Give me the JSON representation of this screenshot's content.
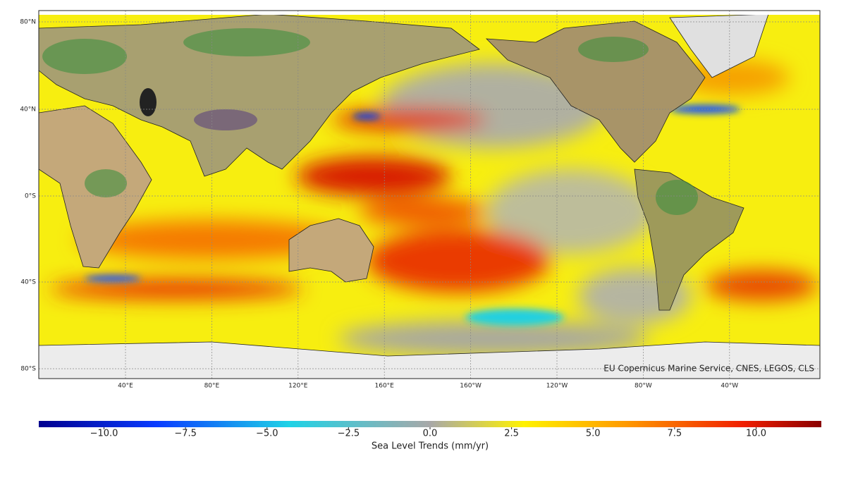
{
  "map": {
    "lat_labels": [
      "80°N",
      "40°N",
      "0°S",
      "40°S",
      "80°S"
    ],
    "lon_labels": [
      "40°E",
      "80°E",
      "120°E",
      "160°E",
      "160°W",
      "120°W",
      "80°W",
      "40°W"
    ],
    "credit": "EU Copernicus Marine Service, CNES, LEGOS, CLS"
  },
  "colorbar": {
    "label": "Sea Level Trends (mm/yr)",
    "lim": [
      -12,
      12
    ],
    "ticks": [
      {
        "value": -10,
        "label": "−10.0"
      },
      {
        "value": -7.5,
        "label": "−7.5"
      },
      {
        "value": -5,
        "label": "−5.0"
      },
      {
        "value": -2.5,
        "label": "−2.5"
      },
      {
        "value": 0,
        "label": "0.0"
      },
      {
        "value": 2.5,
        "label": "2.5"
      },
      {
        "value": 5,
        "label": "5.0"
      },
      {
        "value": 7.5,
        "label": "7.5"
      },
      {
        "value": 10,
        "label": "10.0"
      }
    ]
  }
}
